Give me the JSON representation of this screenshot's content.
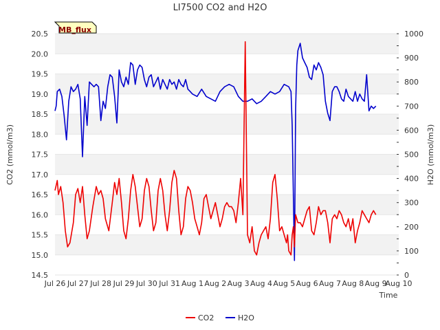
{
  "chart_data": {
    "type": "line",
    "title": "LI7500 CO2 and H2O",
    "badge": "MB_flux",
    "xlabel": "Time",
    "ylabel_left": "CO2 (mmol/m3)",
    "ylabel_right": "H2O (mmol/m3)",
    "x_ticks": [
      "Jul 26",
      "Jul 27",
      "Jul 28",
      "Jul 29",
      "Jul 30",
      "Jul 31",
      "Aug 1",
      "Aug 2",
      "Aug 3",
      "Aug 4",
      "Aug 5",
      "Aug 6",
      "Aug 7",
      "Aug 8",
      "Aug 9",
      "Aug 10"
    ],
    "xlim": [
      0,
      15
    ],
    "ylim_left": [
      14.5,
      20.5
    ],
    "yticks_left": [
      "14.5",
      "15.0",
      "15.5",
      "16.0",
      "16.5",
      "17.0",
      "17.5",
      "18.0",
      "18.5",
      "19.0",
      "19.5",
      "20.0",
      "20.5"
    ],
    "ylim_right": [
      0,
      1000
    ],
    "yticks_right": [
      "0",
      "100",
      "200",
      "300",
      "400",
      "500",
      "600",
      "700",
      "800",
      "900",
      "1000"
    ],
    "grid": "horizontal alternating bands",
    "legend": "bottom",
    "series": [
      {
        "name": "CO2",
        "axis": "left",
        "color": "#ee0000",
        "x": [
          0.0,
          0.1,
          0.15,
          0.25,
          0.35,
          0.45,
          0.55,
          0.65,
          0.8,
          0.9,
          1.0,
          1.1,
          1.2,
          1.3,
          1.4,
          1.5,
          1.65,
          1.8,
          1.9,
          2.0,
          2.1,
          2.2,
          2.35,
          2.5,
          2.6,
          2.7,
          2.8,
          2.9,
          3.0,
          3.1,
          3.2,
          3.3,
          3.4,
          3.5,
          3.6,
          3.7,
          3.8,
          3.9,
          4.0,
          4.1,
          4.2,
          4.3,
          4.4,
          4.5,
          4.6,
          4.7,
          4.8,
          4.9,
          5.0,
          5.1,
          5.2,
          5.3,
          5.4,
          5.5,
          5.6,
          5.7,
          5.8,
          5.9,
          6.0,
          6.1,
          6.2,
          6.3,
          6.4,
          6.5,
          6.6,
          6.7,
          6.8,
          6.9,
          7.0,
          7.1,
          7.2,
          7.3,
          7.4,
          7.5,
          7.6,
          7.7,
          7.8,
          7.9,
          8.0,
          8.1,
          8.2,
          8.3,
          8.4,
          8.5,
          8.6,
          8.7,
          8.8,
          8.9,
          9.0,
          9.1,
          9.2,
          9.3,
          9.4,
          9.5,
          9.6,
          9.7,
          9.8,
          9.9,
          10.0,
          10.1,
          10.15,
          10.2,
          10.3,
          10.35,
          10.4,
          10.42,
          10.45,
          10.5,
          10.6,
          10.7,
          10.8,
          10.9,
          11.0,
          11.1,
          11.2,
          11.3,
          11.4,
          11.5,
          11.6,
          11.7,
          11.8,
          11.9,
          12.0,
          12.1,
          12.2,
          12.3,
          12.4,
          12.5,
          12.6,
          12.7,
          12.8,
          12.9,
          13.0,
          13.1,
          13.2,
          13.3,
          13.4,
          13.5,
          13.6,
          13.7,
          13.8,
          13.9,
          14.0
        ],
        "values": [
          16.6,
          16.85,
          16.5,
          16.7,
          16.3,
          15.6,
          15.2,
          15.3,
          15.8,
          16.5,
          16.65,
          16.3,
          16.7,
          16.0,
          15.4,
          15.6,
          16.2,
          16.7,
          16.5,
          16.6,
          16.4,
          15.9,
          15.6,
          16.3,
          16.8,
          16.5,
          16.9,
          16.3,
          15.6,
          15.4,
          15.9,
          16.6,
          17.0,
          16.7,
          16.2,
          15.7,
          15.9,
          16.6,
          16.9,
          16.7,
          16.1,
          15.6,
          15.8,
          16.6,
          16.9,
          16.6,
          16.0,
          15.6,
          16.1,
          16.8,
          17.1,
          16.9,
          16.1,
          15.5,
          15.7,
          16.4,
          16.7,
          16.6,
          16.3,
          15.9,
          15.7,
          15.5,
          15.8,
          16.4,
          16.5,
          16.2,
          15.9,
          16.1,
          16.3,
          16.0,
          15.7,
          15.9,
          16.2,
          16.3,
          16.2,
          16.2,
          16.1,
          15.8,
          16.3,
          16.9,
          16.0,
          20.3,
          15.5,
          15.3,
          15.7,
          15.1,
          15.0,
          15.3,
          15.5,
          15.6,
          15.7,
          15.4,
          15.9,
          16.8,
          17.0,
          16.4,
          15.6,
          15.7,
          15.5,
          15.3,
          15.5,
          15.1,
          15.0,
          15.5,
          15.7,
          15.5,
          15.2,
          16.0,
          15.8,
          15.8,
          15.7,
          15.9,
          16.1,
          16.2,
          15.6,
          15.5,
          15.8,
          16.2,
          16.0,
          16.1,
          16.1,
          15.8,
          15.3,
          15.9,
          16.0,
          15.9,
          16.1,
          16.0,
          15.8,
          15.7,
          15.9,
          15.6,
          15.9,
          15.3,
          15.6,
          15.8,
          16.1,
          16.0,
          15.9,
          15.8,
          16.0,
          16.1,
          16.0
        ],
        "x_detail_note": ""
      },
      {
        "name": "H2O",
        "axis": "right",
        "color": "#0000cc",
        "x": [
          0.0,
          0.05,
          0.1,
          0.2,
          0.3,
          0.4,
          0.5,
          0.6,
          0.7,
          0.8,
          0.9,
          1.0,
          1.1,
          1.2,
          1.3,
          1.4,
          1.5,
          1.6,
          1.7,
          1.8,
          1.9,
          2.0,
          2.1,
          2.2,
          2.3,
          2.4,
          2.5,
          2.6,
          2.7,
          2.8,
          2.9,
          3.0,
          3.1,
          3.2,
          3.3,
          3.4,
          3.5,
          3.6,
          3.7,
          3.8,
          3.9,
          4.0,
          4.1,
          4.2,
          4.3,
          4.4,
          4.5,
          4.6,
          4.7,
          4.8,
          4.9,
          5.0,
          5.1,
          5.2,
          5.3,
          5.4,
          5.5,
          5.6,
          5.7,
          5.8,
          5.9,
          6.0,
          6.2,
          6.4,
          6.6,
          6.8,
          7.0,
          7.2,
          7.4,
          7.6,
          7.8,
          8.0,
          8.2,
          8.4,
          8.6,
          8.8,
          9.0,
          9.2,
          9.4,
          9.6,
          9.8,
          10.0,
          10.2,
          10.3,
          10.35,
          10.45,
          10.5,
          10.55,
          10.6,
          10.7,
          10.8,
          10.9,
          11.0,
          11.1,
          11.2,
          11.3,
          11.4,
          11.5,
          11.6,
          11.7,
          11.8,
          11.9,
          12.0,
          12.1,
          12.2,
          12.3,
          12.4,
          12.5,
          12.6,
          12.7,
          12.8,
          12.9,
          13.0,
          13.1,
          13.2,
          13.3,
          13.4,
          13.5,
          13.6,
          13.7,
          13.8,
          13.9,
          14.0
        ],
        "values": [
          680,
          700,
          760,
          770,
          740,
          660,
          560,
          720,
          780,
          760,
          770,
          790,
          730,
          490,
          740,
          620,
          800,
          790,
          780,
          790,
          780,
          640,
          720,
          690,
          780,
          830,
          820,
          740,
          630,
          850,
          800,
          780,
          820,
          790,
          880,
          870,
          790,
          850,
          870,
          860,
          810,
          780,
          820,
          830,
          780,
          800,
          820,
          770,
          810,
          790,
          770,
          810,
          790,
          800,
          770,
          810,
          790,
          780,
          810,
          770,
          760,
          750,
          740,
          770,
          740,
          730,
          720,
          760,
          780,
          790,
          780,
          740,
          720,
          720,
          730,
          710,
          720,
          740,
          760,
          750,
          760,
          790,
          780,
          760,
          620,
          60,
          690,
          870,
          930,
          960,
          900,
          880,
          860,
          820,
          810,
          870,
          850,
          880,
          860,
          830,
          720,
          670,
          640,
          760,
          780,
          780,
          760,
          730,
          720,
          770,
          740,
          730,
          720,
          760,
          720,
          750,
          730,
          720,
          830,
          680,
          700,
          690,
          700
        ],
        "x_detail_note": ""
      }
    ]
  }
}
